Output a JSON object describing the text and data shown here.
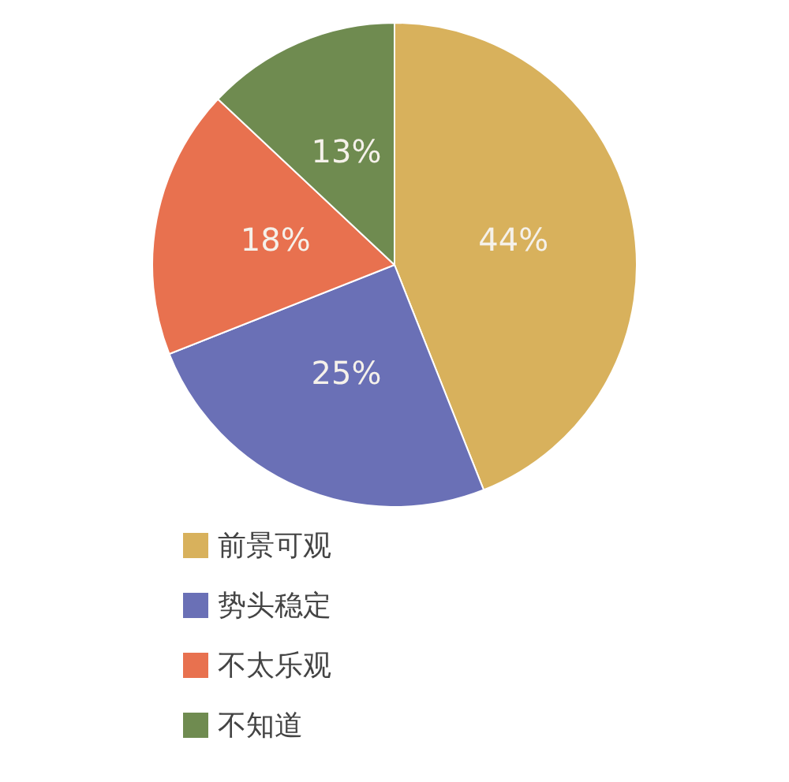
{
  "chart_data": {
    "type": "pie",
    "categories": [
      "前景可观",
      "势头稳定",
      "不太乐观",
      "不知道"
    ],
    "values": [
      44,
      25,
      18,
      13
    ],
    "colors": [
      "#d8b15c",
      "#6a70b6",
      "#e8714f",
      "#6f8b50"
    ],
    "value_labels": [
      "44%",
      "25%",
      "18%",
      "13%"
    ],
    "legend": "bottom"
  }
}
